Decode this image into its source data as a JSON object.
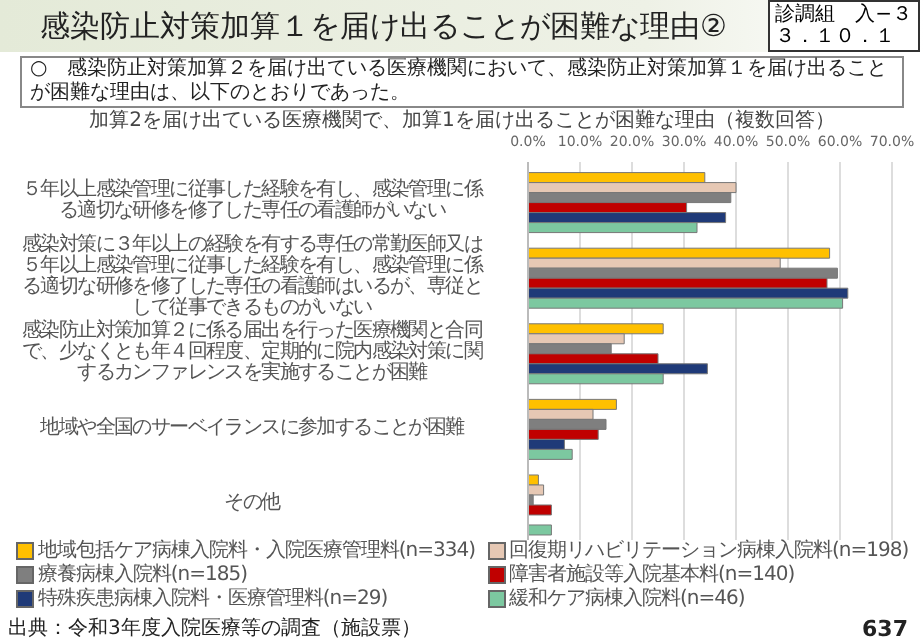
{
  "chart_data": {
    "type": "bar",
    "orientation": "horizontal",
    "title": "感染防止対策加算１を届け出ることが困難な理由②",
    "subtitle": "加算2を届け出ている医療機関で、加算1を届け出ることが困難な理由（複数回答）",
    "annotations": [
      "診調組　入−３",
      "３．１０．１",
      "○　感染防止対策加算２を届け出ている医療機関において、感染防止対策加算１を届け出ることが困難な理由は、以下のとおりであった。",
      "出典：令和3年度入院医療等の調査（施設票）",
      "637"
    ],
    "categories": [
      "５年以上感染管理に従事した経験を有し、感染管理に係る適切な研修を修了した専任の看護師がいない",
      "感染対策に３年以上の経験を有する専任の常勤医師又は５年以上感染管理に従事した経験を有し、感染管理に係る適切な研修を修了した専任の看護師はいるが、専従として従事できるものがいない",
      "感染防止対策加算２に係る届出を行った医療機関と合同で、少なくとも年４回程度、定期的に院内感染対策に関するカンファレンスを実施することが困難",
      "地域や全国のサーベイランスに参加することが困難",
      "その他"
    ],
    "series": [
      {
        "name": "地域包括ケア病棟入院料・入院医療管理料(n=334)",
        "color": "#ffc000",
        "values": [
          34,
          58,
          26,
          17,
          2
        ]
      },
      {
        "name": "回復期リハビリテーション病棟入院料(n=198)",
        "color": "#e6c8b4",
        "values": [
          40,
          48.5,
          18.5,
          12.5,
          3
        ]
      },
      {
        "name": "療養病棟入院料(n=185)",
        "color": "#7f7f7f",
        "values": [
          39,
          59.5,
          16,
          15,
          1
        ]
      },
      {
        "name": "障害者施設等入院基本料(n=140)",
        "color": "#c00000",
        "values": [
          30.5,
          57.5,
          25,
          13.5,
          4.5
        ]
      },
      {
        "name": "特殊疾患病棟入院料・医療管理料(n=29)",
        "color": "#1f3a78",
        "values": [
          38,
          61.5,
          34.5,
          7,
          null
        ]
      },
      {
        "name": "緩和ケア病棟入院料(n=46)",
        "color": "#7cc8a0",
        "values": [
          32.5,
          60.5,
          26,
          8.5,
          4.5
        ]
      }
    ],
    "xlim": [
      0,
      70
    ],
    "xticks": [
      {
        "value": 0,
        "label": "0.0%"
      },
      {
        "value": 10,
        "label": "10.0%"
      },
      {
        "value": 20,
        "label": "20.0%"
      },
      {
        "value": 30,
        "label": "30.0%"
      },
      {
        "value": 40,
        "label": "40.0%"
      },
      {
        "value": 50,
        "label": "50.0%"
      },
      {
        "value": 60,
        "label": "60.0%"
      },
      {
        "value": 70,
        "label": "70.0%"
      }
    ],
    "grid": "x",
    "legend": "bottom"
  }
}
